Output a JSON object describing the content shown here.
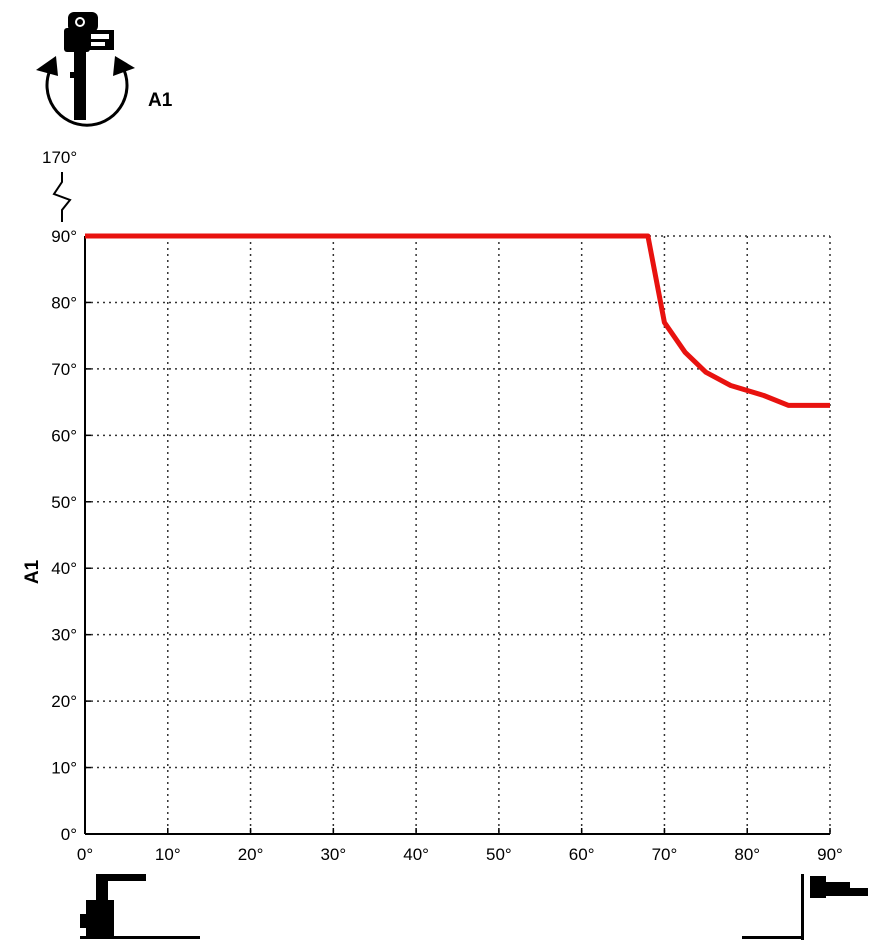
{
  "chart_data": {
    "type": "line",
    "title": "",
    "xlabel": "",
    "ylabel": "A1",
    "xlim": [
      0,
      90
    ],
    "ylim": [
      0,
      90
    ],
    "x_ticks": [
      "0°",
      "10°",
      "20°",
      "30°",
      "40°",
      "50°",
      "60°",
      "70°",
      "80°",
      "90°"
    ],
    "y_ticks": [
      "0°",
      "10°",
      "20°",
      "30°",
      "40°",
      "50°",
      "60°",
      "70°",
      "80°",
      "90°"
    ],
    "y_break_label": "170°",
    "grid": true,
    "grid_style": "dotted",
    "series": [
      {
        "color": "#e8120f",
        "x": [
          0,
          68,
          70,
          72.5,
          75,
          78,
          82,
          85,
          90
        ],
        "y": [
          90,
          90,
          77,
          72.5,
          69.5,
          67.5,
          66,
          64.5,
          64.5
        ]
      }
    ]
  },
  "axis_icon": {
    "label": "A1",
    "icon": "robot-axis-a1-rotation-icon"
  },
  "x_axis_icons": {
    "left": "robot-arm-vertical-icon",
    "right": "robot-arm-horizontal-icon"
  },
  "colors": {
    "series": "#e8120f",
    "grid": "#333333",
    "axis": "#000000"
  }
}
